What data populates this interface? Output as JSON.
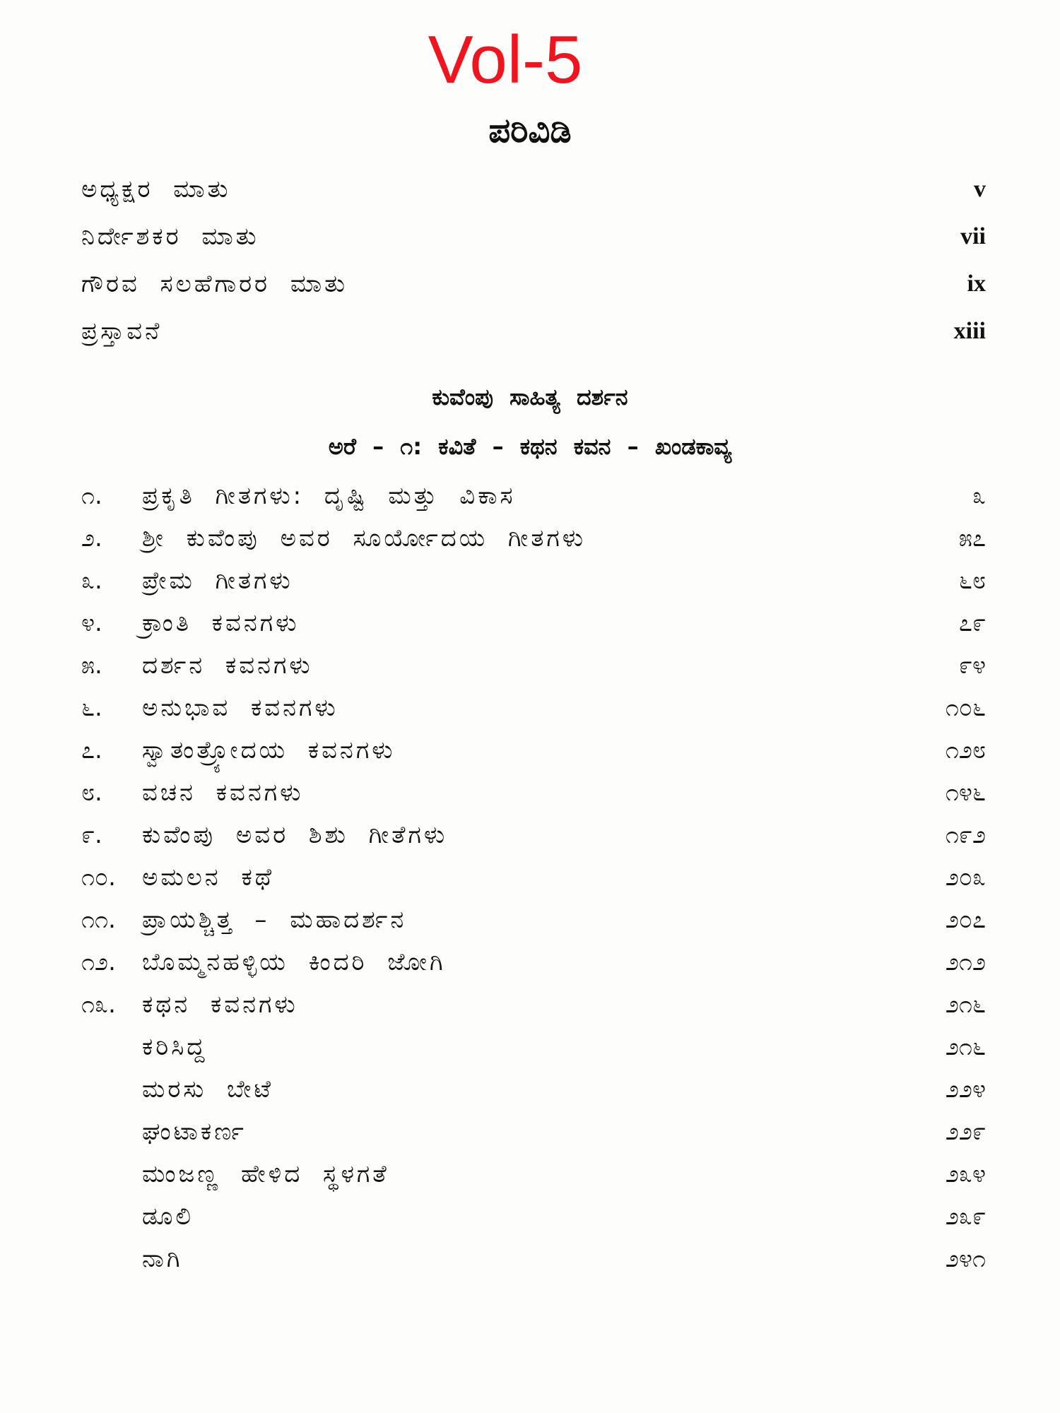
{
  "volume_label": "Vol-5",
  "title": "ಪರಿವಿಡಿ",
  "front_matter": [
    {
      "label": "ಅಧ್ಯಕ್ಷರ ಮಾತು",
      "page": "v"
    },
    {
      "label": "ನಿರ್ದೇಶಕರ ಮಾತು",
      "page": "vii"
    },
    {
      "label": "ಗೌರವ ಸಲಹೆಗಾರರ ಮಾತು",
      "page": "ix"
    },
    {
      "label": "ಪ್ರಸ್ತಾವನೆ",
      "page": "xiii"
    }
  ],
  "section_heading": "ಕುವೆಂಪು ಸಾಹಿತ್ಯ ದರ್ಶನ",
  "part_heading": "ಅರೆ – ೧: ಕವಿತೆ – ಕಥನ ಕವನ – ಖಂಡಕಾವ್ಯ",
  "entries": [
    {
      "num": "೧.",
      "label": "ಪ್ರಕೃತಿ ಗೀತಗಳು: ದೃಷ್ಟಿ ಮತ್ತು ವಿಕಾಸ",
      "page": "೩"
    },
    {
      "num": "೨.",
      "label": "ಶ್ರೀ ಕುವೆಂಪು ಅವರ ಸೂರ್ಯೋದಯ ಗೀತಗಳು",
      "page": "೫೭"
    },
    {
      "num": "೩.",
      "label": "ಪ್ರೇಮ ಗೀತಗಳು",
      "page": "೬೮"
    },
    {
      "num": "೪.",
      "label": "ಕ್ರಾಂತಿ ಕವನಗಳು",
      "page": "೭೯"
    },
    {
      "num": "೫.",
      "label": "ದರ್ಶನ ಕವನಗಳು",
      "page": "೯೪"
    },
    {
      "num": "೬.",
      "label": "ಅನುಭಾವ ಕವನಗಳು",
      "page": "೧೦೬"
    },
    {
      "num": "೭.",
      "label": "ಸ್ವಾತಂತ್ರ್ಯೋದಯ ಕವನಗಳು",
      "page": "೧೨೮"
    },
    {
      "num": "೮.",
      "label": "ವಚನ ಕವನಗಳು",
      "page": "೧೪೬"
    },
    {
      "num": "೯.",
      "label": "ಕುವೆಂಪು ಅವರ ಶಿಶು ಗೀತೆಗಳು",
      "page": "೧೯೨"
    },
    {
      "num": "೧೦.",
      "label": "ಅಮಲನ ಕಥೆ",
      "page": "೨೦೩"
    },
    {
      "num": "೧೧.",
      "label": "ಪ್ರಾಯಶ್ಚಿತ್ತ – ಮಹಾದರ್ಶನ",
      "page": "೨೦೭"
    },
    {
      "num": "೧೨.",
      "label": "ಬೊಮ್ಮನಹಳ್ಳಿಯ ಕಿಂದರಿ ಜೋಗಿ",
      "page": "೨೧೨"
    },
    {
      "num": "೧೩.",
      "label": "ಕಥನ ಕವನಗಳು",
      "page": "೨೧೬"
    }
  ],
  "sub_entries": [
    {
      "label": "ಕರಿಸಿದ್ದ",
      "page": "೨೧೬"
    },
    {
      "label": "ಮರಸು ಬೇಟೆ",
      "page": "೨೨೪"
    },
    {
      "label": "ಘಂಟಾಕರ್ಣ",
      "page": "೨೨೯"
    },
    {
      "label": "ಮಂಜಣ್ಣ ಹೇಳಿದ ಸ್ಥಳಗತೆ",
      "page": "೨೩೪"
    },
    {
      "label": "ಡೂಲಿ",
      "page": "೨೩೯"
    },
    {
      "label": "ನಾಗಿ",
      "page": "೨೪೧"
    }
  ]
}
